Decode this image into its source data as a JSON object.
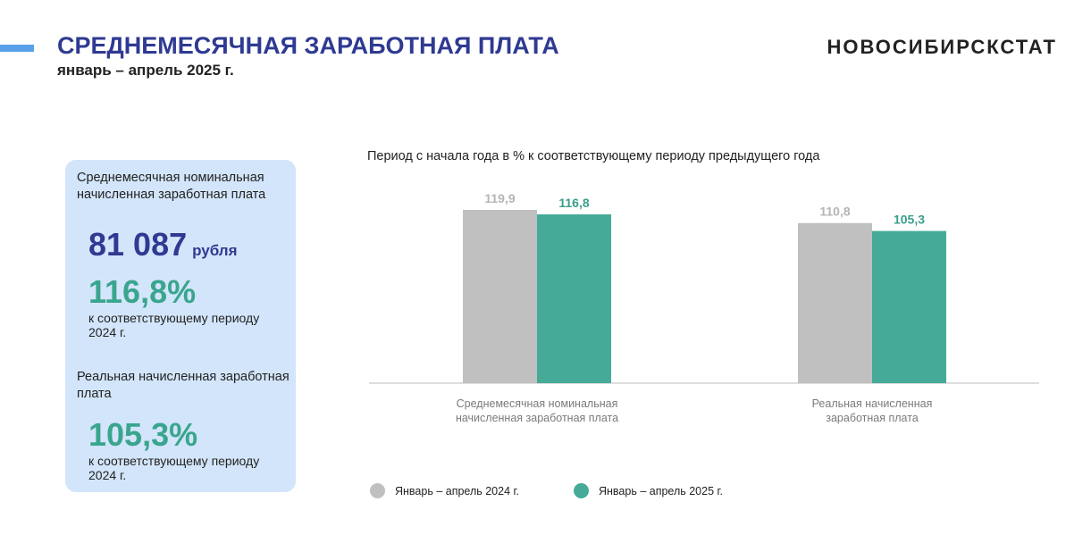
{
  "header": {
    "title": "СРЕДНЕМЕСЯЧНАЯ ЗАРАБОТНАЯ ПЛАТА",
    "subtitle": "январь – апрель 2025 г.",
    "brand": "НОВОСИБИРСКСТАТ"
  },
  "card": {
    "nominal_label": "Среднемесячная номинальная начисленная заработная плата",
    "nominal_value": "81 087",
    "nominal_unit": "рубля",
    "nominal_percent": "116,8%",
    "nominal_note": "к соответствующему периоду 2024 г.",
    "real_label": "Реальная начисленная заработная плата",
    "real_percent": "105,3%",
    "real_note": "к соответствующему периоду 2024 г."
  },
  "colors": {
    "accent": "#5aa0e8",
    "series_2024": "#c0c0c0",
    "series_2025": "#45ab98",
    "title": "#2f3a92"
  },
  "chart_data": {
    "type": "bar",
    "title": "Период с начала года в % к соответствующему периоду предыдущего года",
    "categories": [
      "Среднемесячная номинальная начисленная заработная плата",
      "Реальная начисленная заработная плата"
    ],
    "category_lines": [
      [
        "Среднемесячная номинальная",
        "начисленная заработная плата"
      ],
      [
        "Реальная начисленная",
        "заработная плата"
      ]
    ],
    "series": [
      {
        "name": "Январь – апрель 2024 г.",
        "values": [
          119.9,
          110.8
        ],
        "labels": [
          "119,9",
          "110,8"
        ],
        "color": "#c0c0c0",
        "label_color": "#b5b5b5"
      },
      {
        "name": "Январь – апрель 2025 г.",
        "values": [
          116.8,
          105.3
        ],
        "labels": [
          "116,8",
          "105,3"
        ],
        "color": "#45ab98",
        "label_color": "#3a9e8a"
      }
    ],
    "ylim": [
      0,
      130
    ],
    "grid": false,
    "legend": "bottom-left"
  }
}
